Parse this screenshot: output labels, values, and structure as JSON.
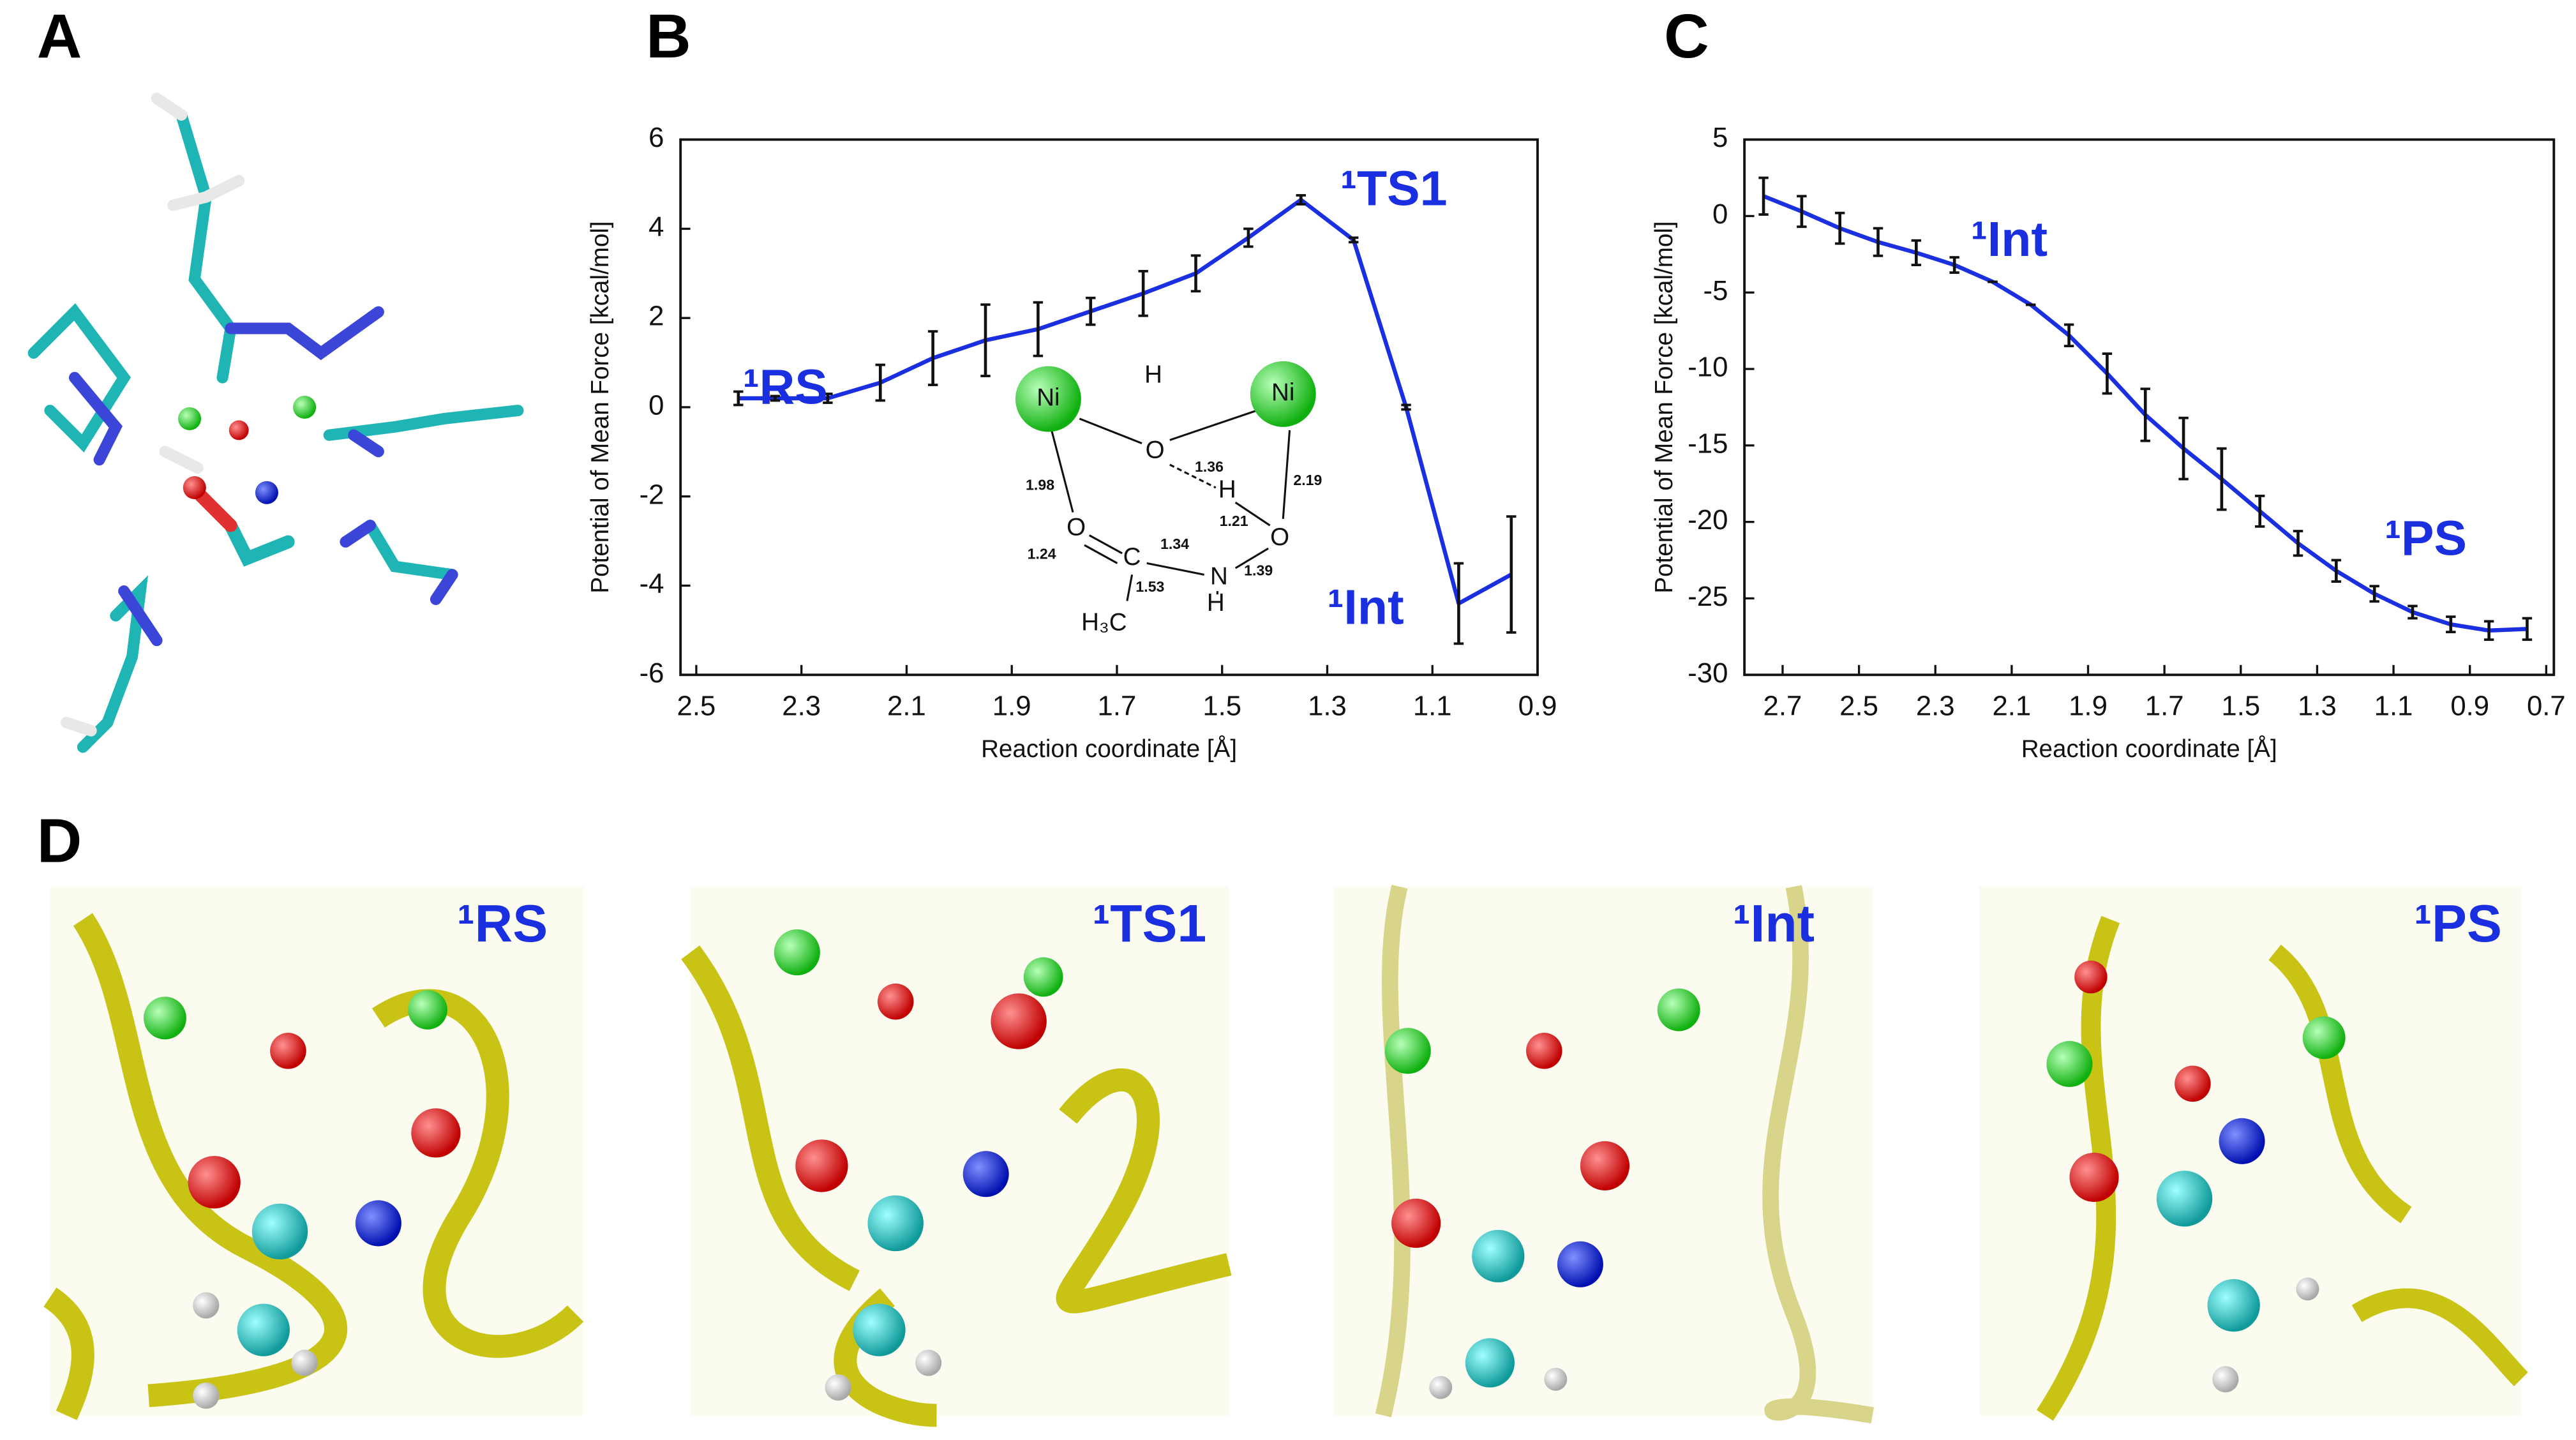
{
  "panels": [
    "A",
    "B",
    "C",
    "D"
  ],
  "panel_d": {
    "labels": [
      "¹RS",
      "¹TS1",
      "¹Int",
      "¹PS"
    ]
  },
  "chart_data": [
    {
      "type": "line",
      "y_label": "Potential of Mean Force [kcal/mol]",
      "x_label": "Reaction coordinate [Å]",
      "x": [
        2.42,
        2.35,
        2.25,
        2.15,
        2.05,
        1.95,
        1.85,
        1.75,
        1.65,
        1.55,
        1.45,
        1.35,
        1.25,
        1.15,
        1.05,
        0.95
      ],
      "series": [
        {
          "color": "#1a2fe0",
          "values": [
            0.2,
            0.2,
            0.2,
            0.55,
            1.1,
            1.5,
            1.75,
            2.15,
            2.55,
            3.0,
            3.8,
            4.65,
            3.75,
            0,
            -4.4,
            -3.75
          ],
          "errors": [
            0.15,
            0.05,
            0.1,
            0.4,
            0.6,
            0.8,
            0.6,
            0.3,
            0.5,
            0.4,
            0.2,
            0.1,
            0.05,
            0.05,
            0.9,
            1.3
          ]
        }
      ],
      "xlim": [
        2.53,
        0.9
      ],
      "xticks": [
        2.5,
        2.3,
        2.1,
        1.9,
        1.7,
        1.5,
        1.3,
        1.1,
        0.9
      ],
      "ylim": [
        -6,
        6
      ],
      "yticks": [
        -6,
        -4,
        -2,
        0,
        2,
        4,
        6
      ],
      "annotations": [
        "¹RS",
        "¹TS1",
        "¹Int"
      ],
      "inset_labels": [
        "Ni",
        "H",
        "O",
        "Ni",
        "1.36",
        "H",
        "2.19",
        "1.98",
        "1.21",
        "O",
        "O",
        "1.24",
        "C",
        "1.34",
        "N",
        "1.39",
        "1.53",
        "H",
        "H₃C"
      ]
    },
    {
      "type": "line",
      "y_label": "Potential of Mean Force [kcal/mol]",
      "x_label": "Reaction coordinate [Å]",
      "x": [
        2.75,
        2.65,
        2.55,
        2.45,
        2.35,
        2.25,
        2.15,
        2.05,
        1.95,
        1.85,
        1.75,
        1.65,
        1.55,
        1.45,
        1.35,
        1.25,
        1.15,
        1.05,
        0.95,
        0.85,
        0.75
      ],
      "series": [
        {
          "color": "#1a2fe0",
          "values": [
            1.3,
            0.3,
            -0.8,
            -1.7,
            -2.4,
            -3.2,
            -4.3,
            -5.8,
            -7.8,
            -10.3,
            -13,
            -15.2,
            -17.2,
            -19.3,
            -21.4,
            -23.2,
            -24.7,
            -25.9,
            -26.7,
            -27.1,
            -27
          ],
          "errors": [
            1.2,
            1,
            1,
            0.9,
            0.8,
            0.5,
            0,
            0,
            0.7,
            1.3,
            1.7,
            2,
            2,
            1,
            0.8,
            0.7,
            0.5,
            0.4,
            0.5,
            0.6,
            0.7
          ]
        }
      ],
      "xlim": [
        2.8,
        0.68
      ],
      "xticks": [
        2.7,
        2.5,
        2.3,
        2.1,
        1.9,
        1.7,
        1.5,
        1.3,
        1.1,
        0.9,
        0.7
      ],
      "ylim": [
        -30,
        5
      ],
      "yticks": [
        -30,
        -25,
        -20,
        -15,
        -10,
        -5,
        0,
        5
      ],
      "annotations": [
        "¹Int",
        "¹PS"
      ]
    }
  ]
}
